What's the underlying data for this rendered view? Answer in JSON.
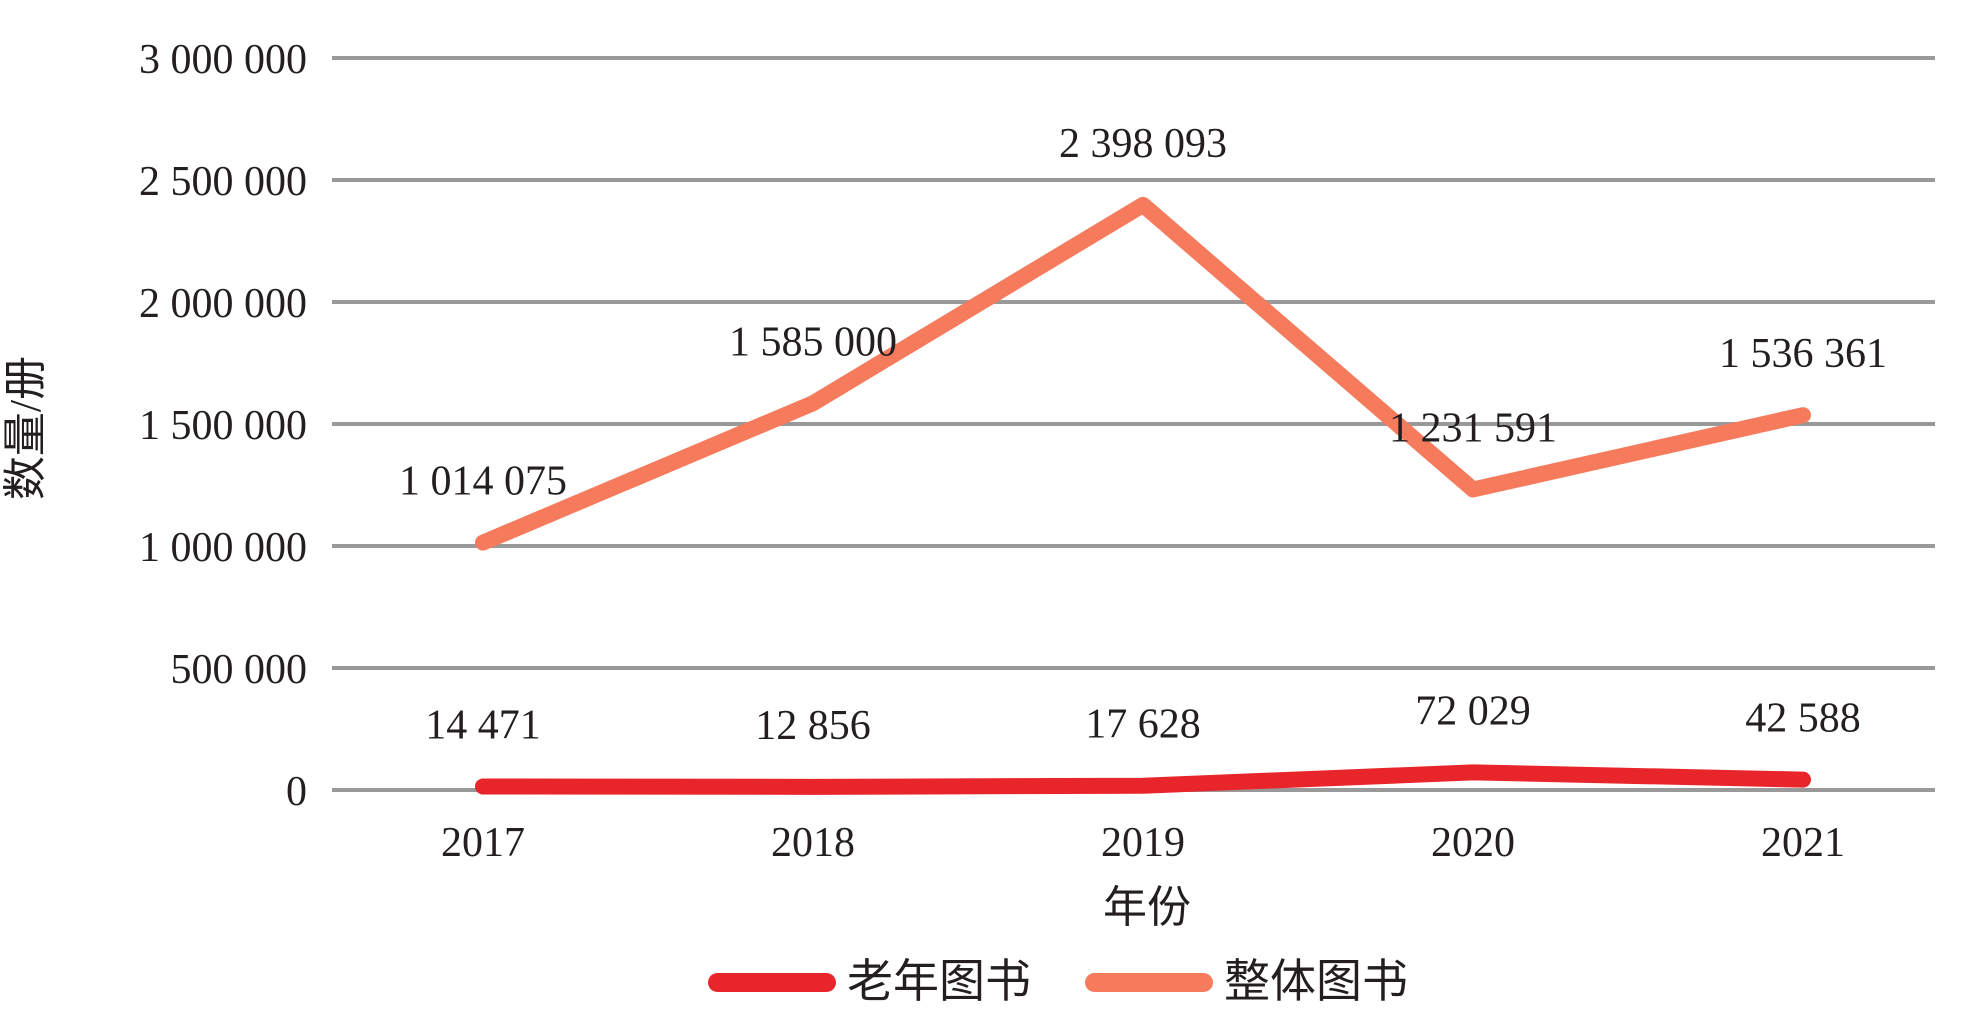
{
  "chart_data": {
    "type": "line",
    "title": "",
    "xlabel": "年份",
    "ylabel": "数量/册",
    "categories": [
      "2017",
      "2018",
      "2019",
      "2020",
      "2021"
    ],
    "series": [
      {
        "name": "老年图书",
        "color": "#e8252a",
        "values": [
          14471,
          12856,
          17628,
          72029,
          42588
        ],
        "value_labels": [
          "14 471",
          "12 856",
          "17 628",
          "72 029",
          "42 588"
        ]
      },
      {
        "name": "整体图书",
        "color": "#f57b5c",
        "values": [
          1014075,
          1585000,
          2398093,
          1231591,
          1536361
        ],
        "value_labels": [
          "1 014 075",
          "1 585 000",
          "2 398 093",
          "1 231 591",
          "1 536 361"
        ]
      }
    ],
    "ylim": [
      0,
      3000000
    ],
    "ytick_interval": 500000,
    "ytick_labels": [
      "0",
      "500 000",
      "1 000 000",
      "1 500 000",
      "2 000 000",
      "2 500 000",
      "3 000 000"
    ],
    "grid": true,
    "gridline_color": "#999999",
    "text_color": "#231f20",
    "background_color": "#ffffff",
    "legend_position": "bottom"
  }
}
